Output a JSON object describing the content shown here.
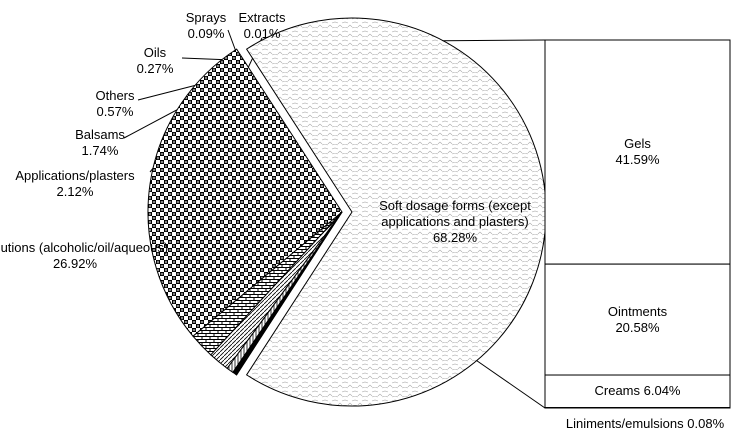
{
  "chart_data": [
    {
      "type": "pie",
      "categories": [
        "Soft dosage forms (except applications and plasters)",
        "Solutions (alcoholic/oil/aqueous)",
        "Applications/plasters",
        "Balsams",
        "Others",
        "Oils",
        "Sprays",
        "Extracts"
      ],
      "values": [
        68.28,
        26.92,
        2.12,
        1.74,
        0.57,
        0.27,
        0.09,
        0.01
      ],
      "value_labels": [
        "68.28%",
        "26.92%",
        "2.12%",
        "1.74%",
        "0.57%",
        "0.27%",
        "0.09%",
        "0.01%"
      ]
    },
    {
      "type": "bar",
      "categories": [
        "Gels",
        "Ointments",
        "Creams",
        "Liniments/emulsions"
      ],
      "values": [
        41.59,
        20.58,
        6.04,
        0.08
      ],
      "value_labels": [
        "41.59%",
        "20.58%",
        "6.04%",
        "0.08%"
      ]
    }
  ]
}
